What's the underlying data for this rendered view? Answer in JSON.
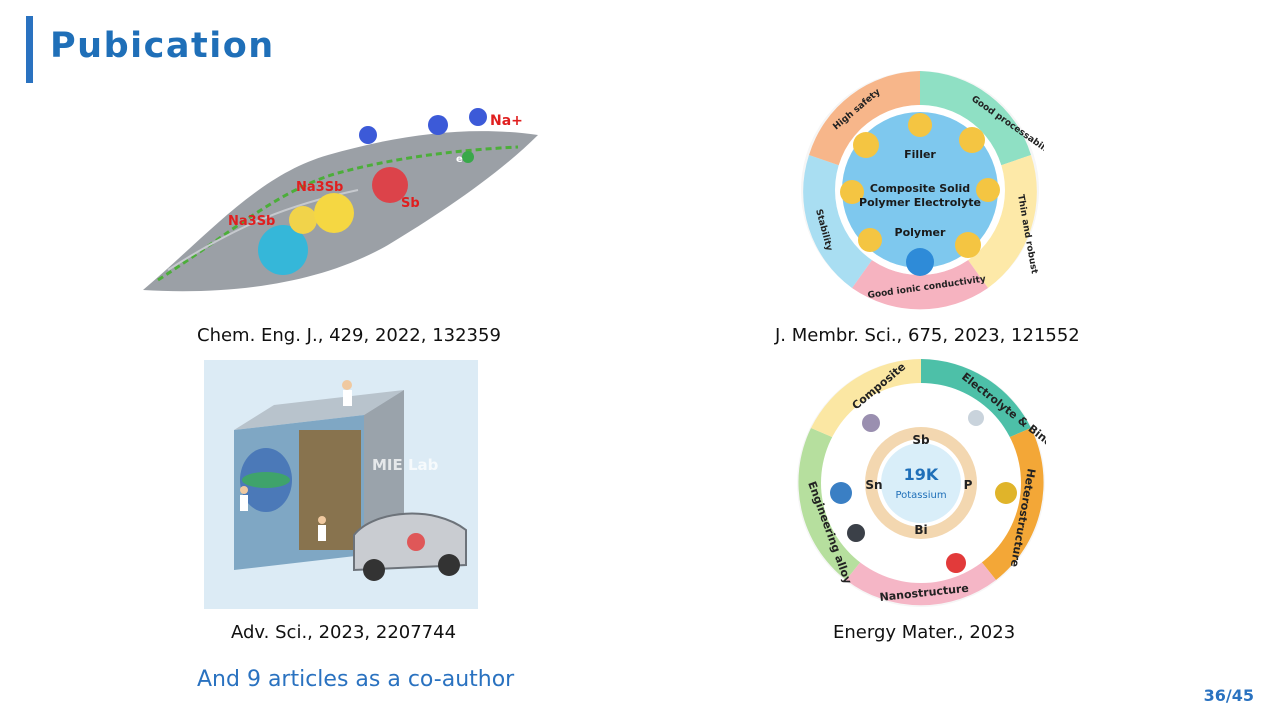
{
  "slide": {
    "title": "Pubication",
    "page_number": "36/45",
    "coauthor_note": "And 9  articles as a co-author"
  },
  "publications": [
    {
      "citation": "Chem. Eng. J., 429, 2022, 132359",
      "figure_labels": {
        "na_ion": "Na+",
        "na3sb_a": "Na3Sb",
        "na3sb_b": "Na3Sb",
        "sb": "Sb",
        "electron": "e"
      }
    },
    {
      "citation": "J. Membr. Sci., 675, 2023, 121552",
      "figure_labels": {
        "ring": [
          "High safety",
          "Good processability",
          "Thin and robust",
          "Good ionic conductivity",
          "Stability"
        ],
        "filler": "Filler",
        "center_line1": "Composite Solid",
        "center_line2": "Polymer Electrolyte",
        "polymer": "Polymer"
      }
    },
    {
      "citation": "Adv. Sci., 2023, 2207744",
      "figure_labels": {
        "lab_logo": "MIE Lab"
      }
    },
    {
      "citation": "Energy Mater., 2023",
      "figure_labels": {
        "ring": [
          "Composite",
          "Electrolyte & Binder",
          "Heterostructure",
          "Nanostructure",
          "Engineering alloy"
        ],
        "center_element": "19K",
        "center_name": "Potassium",
        "elements": [
          "Sb",
          "P",
          "Bi",
          "Sn"
        ]
      }
    }
  ],
  "colors": {
    "accent": "#2a72c0",
    "title": "#1f6fb8"
  }
}
